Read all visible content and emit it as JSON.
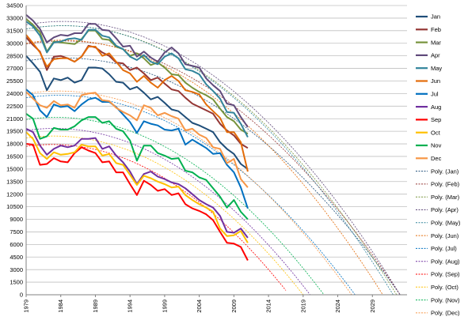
{
  "chart_data": {
    "type": "line",
    "title": "",
    "xlabel": "",
    "ylabel": "",
    "xlim": [
      1979,
      2034
    ],
    "ylim": [
      0,
      34500
    ],
    "y_ticks": [
      0,
      1500,
      3000,
      4500,
      6000,
      7500,
      9000,
      10500,
      12000,
      13500,
      15000,
      16500,
      18000,
      19500,
      21000,
      22500,
      24000,
      25500,
      27000,
      28500,
      30000,
      31500,
      33000,
      34500
    ],
    "y_tick_labels": [
      "0",
      "1500",
      "3000",
      "4500",
      "6000",
      "7500",
      "9000",
      "10500",
      "12000",
      "13500",
      "15000",
      "16500",
      "18000",
      "19500",
      "21000",
      "22500",
      "24000",
      "25500",
      "27000",
      "28500",
      "30000",
      "31500",
      "33000",
      "34500"
    ],
    "x_ticks": [
      1979,
      1984,
      1989,
      1994,
      1999,
      2004,
      2009,
      2014,
      2019,
      2024,
      2029
    ],
    "x_tick_labels": [
      "1979",
      "1984",
      "1989",
      "1994",
      "1999",
      "2004",
      "2009",
      "2014",
      "2019",
      "2024",
      "2029"
    ],
    "grid": "horizontal",
    "legend_position": "right",
    "years": [
      1979,
      1980,
      1981,
      1982,
      1983,
      1984,
      1985,
      1986,
      1987,
      1988,
      1989,
      1990,
      1991,
      1992,
      1993,
      1994,
      1995,
      1996,
      1997,
      1998,
      1999,
      2000,
      2001,
      2002,
      2003,
      2004,
      2005,
      2006,
      2007,
      2008,
      2009,
      2010,
      2011
    ],
    "series": [
      {
        "name": "Jan",
        "color": "#1f4e79",
        "values": [
          28500,
          27600,
          26600,
          24400,
          25800,
          25600,
          25900,
          25300,
          25600,
          27100,
          27100,
          27000,
          26300,
          25400,
          25300,
          24500,
          24800,
          24100,
          23300,
          23600,
          22900,
          22100,
          21900,
          21200,
          20500,
          20200,
          19800,
          19400,
          18200,
          17400,
          16800,
          15600,
          15000
        ]
      },
      {
        "name": "Feb",
        "color": "#943634",
        "values": [
          30700,
          29800,
          29000,
          26800,
          28400,
          28500,
          28200,
          27800,
          28400,
          29700,
          29500,
          28900,
          28500,
          27700,
          27600,
          26800,
          27100,
          26400,
          25600,
          25900,
          25200,
          24500,
          24300,
          23500,
          22800,
          22400,
          22000,
          21600,
          20400,
          19600,
          19000,
          18000,
          17500
        ]
      },
      {
        "name": "Mar",
        "color": "#77933c",
        "values": [
          32900,
          32200,
          31300,
          29000,
          30200,
          30100,
          30000,
          29900,
          30500,
          31500,
          31500,
          30500,
          30400,
          29600,
          29300,
          28500,
          28800,
          28200,
          27400,
          27700,
          27100,
          26300,
          26200,
          25300,
          24700,
          24200,
          23800,
          23300,
          22200,
          21200,
          20700,
          19700,
          19200
        ]
      },
      {
        "name": "Apr",
        "color": "#604a7b",
        "values": [
          33400,
          32700,
          31700,
          30100,
          30700,
          31000,
          30900,
          31200,
          31200,
          32300,
          32300,
          31600,
          31500,
          30600,
          29600,
          29700,
          28400,
          29000,
          28300,
          27800,
          28900,
          29500,
          28800,
          27500,
          27300,
          27100,
          25800,
          25000,
          24300,
          22800,
          22600,
          21200,
          20000
        ]
      },
      {
        "name": "May",
        "color": "#31849b",
        "values": [
          32600,
          32000,
          30900,
          28900,
          30100,
          30200,
          30500,
          30600,
          30400,
          31600,
          31600,
          30900,
          30700,
          29700,
          29300,
          28400,
          28000,
          28600,
          27800,
          27500,
          28400,
          28800,
          28200,
          26900,
          26700,
          26300,
          25100,
          24300,
          23400,
          21800,
          21700,
          20400,
          18800
        ]
      },
      {
        "name": "Jun",
        "color": "#e36c09",
        "values": [
          31000,
          30000,
          28900,
          27200,
          28100,
          28200,
          28200,
          27800,
          28400,
          29600,
          29600,
          28500,
          28800,
          27800,
          26800,
          26400,
          25400,
          26100,
          25300,
          24700,
          25600,
          26100,
          25500,
          24400,
          24200,
          23900,
          22700,
          21900,
          21100,
          19400,
          19400,
          18200,
          14700
        ]
      },
      {
        "name": "Jul",
        "color": "#0070c0",
        "values": [
          24500,
          23800,
          22000,
          21200,
          22700,
          22400,
          22500,
          21900,
          22700,
          23300,
          23500,
          23000,
          23000,
          22400,
          21500,
          20600,
          19300,
          20700,
          20400,
          20200,
          19700,
          19600,
          19800,
          17900,
          18500,
          18000,
          17500,
          16800,
          16900,
          15500,
          14600,
          12800,
          10300
        ]
      },
      {
        "name": "Aug",
        "color": "#7030a0",
        "values": [
          19800,
          19400,
          17800,
          16700,
          17400,
          17800,
          17600,
          17800,
          18600,
          18600,
          18700,
          17400,
          17700,
          16600,
          15800,
          14700,
          13200,
          14400,
          14700,
          14100,
          13800,
          13400,
          13200,
          12700,
          12000,
          11300,
          10800,
          10400,
          9400,
          7500,
          7400,
          7900,
          6800
        ]
      },
      {
        "name": "Sep",
        "color": "#ff0000",
        "values": [
          18000,
          17900,
          15500,
          15600,
          16300,
          15900,
          15800,
          16900,
          17600,
          17200,
          16900,
          15800,
          15900,
          14600,
          14600,
          13200,
          11900,
          13600,
          13100,
          12400,
          12600,
          11900,
          12100,
          10800,
          10300,
          10000,
          9600,
          8900,
          7500,
          6200,
          6100,
          5700,
          4100
        ]
      },
      {
        "name": "Oct",
        "color": "#ffc000",
        "values": [
          19400,
          18600,
          16900,
          16200,
          17000,
          16700,
          16800,
          17000,
          17900,
          17700,
          17700,
          16600,
          16800,
          15700,
          15500,
          14300,
          13100,
          14200,
          13900,
          13500,
          13200,
          12800,
          12900,
          11900,
          11300,
          10800,
          10400,
          9900,
          7900,
          7000,
          7100,
          7600,
          6200
        ]
      },
      {
        "name": "Nov",
        "color": "#00b050",
        "values": [
          21600,
          21000,
          18600,
          18900,
          19900,
          19700,
          19700,
          20100,
          20800,
          21200,
          21200,
          20500,
          20700,
          19800,
          19500,
          18400,
          16000,
          17800,
          17800,
          16900,
          16600,
          16200,
          16300,
          14800,
          14600,
          14000,
          13700,
          12700,
          11700,
          10400,
          11300,
          9900,
          9000
        ]
      },
      {
        "name": "Dec",
        "color": "#f79646",
        "values": [
          24200,
          23400,
          22600,
          22300,
          23100,
          22600,
          22700,
          22300,
          23800,
          24000,
          24100,
          23200,
          23100,
          22300,
          21800,
          21400,
          20800,
          22600,
          22300,
          21400,
          21700,
          21300,
          21000,
          19600,
          19800,
          19100,
          18700,
          17600,
          17400,
          15700,
          16200,
          13800,
          12800
        ]
      }
    ],
    "trendlines": [
      {
        "name": "Poly. (Jan)",
        "color": "#1f4e79",
        "start_value": 27900,
        "end_year": 2033
      },
      {
        "name": "Poly. (Feb)",
        "color": "#943634",
        "start_value": 29900,
        "end_year": 2033
      },
      {
        "name": "Poly. (Mar)",
        "color": "#77933c",
        "start_value": 31700,
        "end_year": 2032.5
      },
      {
        "name": "Poly. (Apr)",
        "color": "#604a7b",
        "start_value": 32200,
        "end_year": 2033
      },
      {
        "name": "Poly. (May)",
        "color": "#31849b",
        "start_value": 31700,
        "end_year": 2032
      },
      {
        "name": "Poly. (Jun)",
        "color": "#e36c09",
        "start_value": 30000,
        "end_year": 2030.5
      },
      {
        "name": "Poly. (Jul)",
        "color": "#0070c0",
        "start_value": 23500,
        "end_year": 2026.5
      },
      {
        "name": "Poly. (Aug)",
        "color": "#7030a0",
        "start_value": 19600,
        "end_year": 2020
      },
      {
        "name": "Poly. (Sep)",
        "color": "#ff0000",
        "start_value": 17700,
        "end_year": 2017
      },
      {
        "name": "Poly. (Oct)",
        "color": "#ffc000",
        "start_value": 18700,
        "end_year": 2019
      },
      {
        "name": "Poly. (Nov)",
        "color": "#00b050",
        "start_value": 20900,
        "end_year": 2022
      },
      {
        "name": "Poly. (Dec)",
        "color": "#f79646",
        "start_value": 24000,
        "end_year": 2026
      }
    ]
  }
}
